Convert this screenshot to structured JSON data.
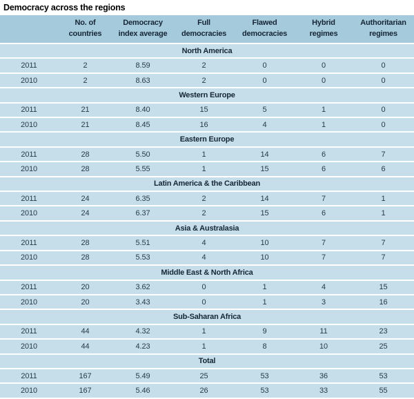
{
  "title": "Democracy across the regions",
  "colors": {
    "header_bg": "#a5cadc",
    "row_bg": "#c6deea",
    "text": "#27394a",
    "bold_text": "#152635",
    "title_text": "#000000",
    "page_bg": "#ffffff"
  },
  "chart_data": {
    "type": "table",
    "title": "Democracy across the regions",
    "columns": [
      {
        "line1": "",
        "line2": ""
      },
      {
        "line1": "No. of",
        "line2": "countries"
      },
      {
        "line1": "Democracy",
        "line2": "index average"
      },
      {
        "line1": "Full",
        "line2": "democracies"
      },
      {
        "line1": "Flawed",
        "line2": "democracies"
      },
      {
        "line1": "Hybrid",
        "line2": "regimes"
      },
      {
        "line1": "Authoritarian",
        "line2": "regimes"
      }
    ],
    "sections": [
      {
        "name": "North America",
        "rows": [
          [
            "2011",
            "2",
            "8.59",
            "2",
            "0",
            "0",
            "0"
          ],
          [
            "2010",
            "2",
            "8.63",
            "2",
            "0",
            "0",
            "0"
          ]
        ]
      },
      {
        "name": "Western Europe",
        "rows": [
          [
            "2011",
            "21",
            "8.40",
            "15",
            "5",
            "1",
            "0"
          ],
          [
            "2010",
            "21",
            "8.45",
            "16",
            "4",
            "1",
            "0"
          ]
        ]
      },
      {
        "name": "Eastern Europe",
        "rows": [
          [
            "2011",
            "28",
            "5.50",
            "1",
            "14",
            "6",
            "7"
          ],
          [
            "2010",
            "28",
            "5.55",
            "1",
            "15",
            "6",
            "6"
          ]
        ]
      },
      {
        "name": "Latin America & the Caribbean",
        "rows": [
          [
            "2011",
            "24",
            "6.35",
            "2",
            "14",
            "7",
            "1"
          ],
          [
            "2010",
            "24",
            "6.37",
            "2",
            "15",
            "6",
            "1"
          ]
        ]
      },
      {
        "name": "Asia & Australasia",
        "rows": [
          [
            "2011",
            "28",
            "5.51",
            "4",
            "10",
            "7",
            "7"
          ],
          [
            "2010",
            "28",
            "5.53",
            "4",
            "10",
            "7",
            "7"
          ]
        ]
      },
      {
        "name": "Middle East & North Africa",
        "rows": [
          [
            "2011",
            "20",
            "3.62",
            "0",
            "1",
            "4",
            "15"
          ],
          [
            "2010",
            "20",
            "3.43",
            "0",
            "1",
            "3",
            "16"
          ]
        ]
      },
      {
        "name": "Sub-Saharan Africa",
        "rows": [
          [
            "2011",
            "44",
            "4.32",
            "1",
            "9",
            "11",
            "23"
          ],
          [
            "2010",
            "44",
            "4.23",
            "1",
            "8",
            "10",
            "25"
          ]
        ]
      },
      {
        "name": "Total",
        "rows": [
          [
            "2011",
            "167",
            "5.49",
            "25",
            "53",
            "36",
            "53"
          ],
          [
            "2010",
            "167",
            "5.46",
            "26",
            "53",
            "33",
            "55"
          ]
        ]
      }
    ]
  }
}
